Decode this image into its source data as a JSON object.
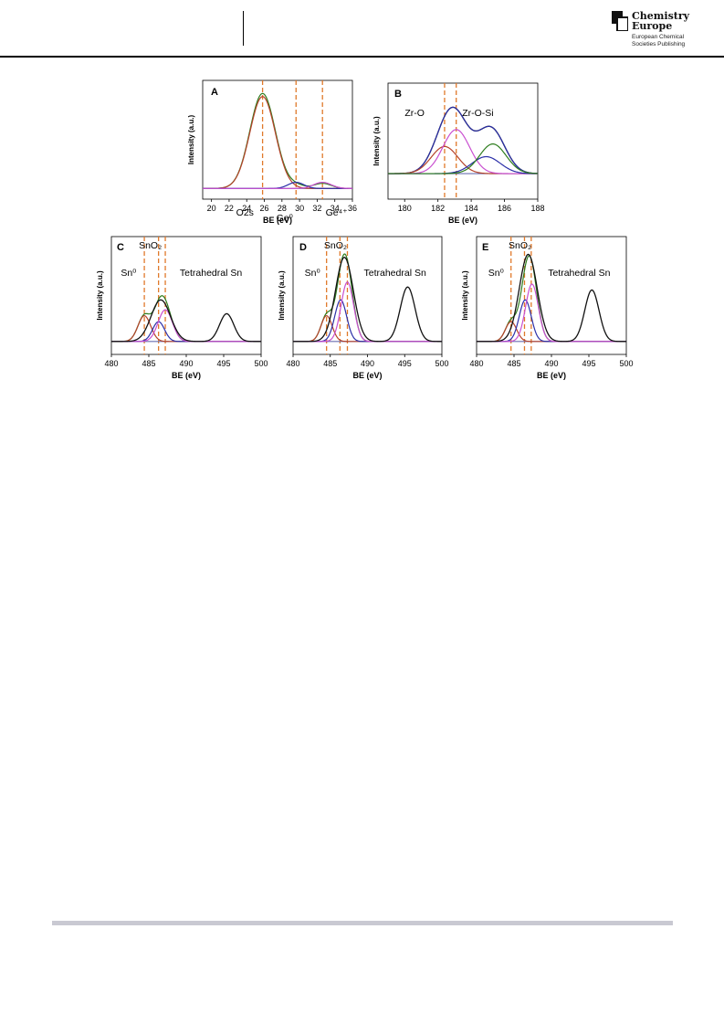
{
  "header": {
    "logo_line1": "Chemistry",
    "logo_line2": "Europe",
    "logo_sub1": "European Chemical",
    "logo_sub2": "Societies Publishing"
  },
  "colors": {
    "green": "#2e7d1e",
    "red": "#b5432a",
    "blue": "#2b2fa8",
    "magenta": "#c94fd0",
    "black": "#111111",
    "baseline": "#6a6fb0",
    "ref_line": "#e0792a"
  },
  "chart_data": [
    {
      "panel": "A",
      "type": "line",
      "xlabel": "BE (eV)",
      "ylabel": "Intensity (a.u.)",
      "xlim": [
        19,
        36
      ],
      "x_ticks": [
        20,
        22,
        24,
        26,
        28,
        30,
        32,
        34,
        36
      ],
      "grid": false,
      "ref_lines": [
        25.8,
        29.6,
        32.6
      ],
      "annotations": [
        {
          "text": "O2s",
          "x": 23.8
        },
        {
          "text": "Ge⁰",
          "x": 28.3
        },
        {
          "text": "Ge⁴⁺",
          "x": 34.2
        }
      ],
      "series": [
        {
          "color": "green",
          "peaks": [
            {
              "c": 25.8,
              "w": 1.45,
              "a": 0.93
            },
            {
              "c": 29.6,
              "w": 0.9,
              "a": 0.03
            },
            {
              "c": 32.6,
              "w": 1.0,
              "a": 0.05
            }
          ]
        },
        {
          "color": "red",
          "peaks": [
            {
              "c": 25.8,
              "w": 1.45,
              "a": 0.9
            }
          ]
        },
        {
          "color": "blue",
          "peaks": [
            {
              "c": 29.6,
              "w": 0.9,
              "a": 0.06
            }
          ]
        },
        {
          "color": "magenta",
          "peaks": [
            {
              "c": 32.6,
              "w": 1.0,
              "a": 0.06
            }
          ]
        }
      ]
    },
    {
      "panel": "B",
      "type": "line",
      "xlabel": "BE (eV)",
      "ylabel": "Intensity (a.u.)",
      "xlim": [
        179,
        188
      ],
      "x_ticks": [
        180,
        182,
        184,
        186,
        188
      ],
      "grid": false,
      "ref_lines": [
        182.4,
        183.1
      ],
      "annotations": [
        {
          "text": "Zr-O",
          "x": 180.6
        },
        {
          "text": "Zr-O-Si",
          "x": 184.4
        }
      ],
      "series": [
        {
          "color": "black",
          "peaks": [
            {
              "c": 182.4,
              "w": 0.8,
              "a": 0.32
            },
            {
              "c": 183.1,
              "w": 0.8,
              "a": 0.52
            },
            {
              "c": 184.9,
              "w": 0.85,
              "a": 0.2
            },
            {
              "c": 185.3,
              "w": 0.8,
              "a": 0.35
            }
          ]
        },
        {
          "color": "blue",
          "peaks": [
            {
              "c": 182.4,
              "w": 0.8,
              "a": 0.32
            },
            {
              "c": 183.1,
              "w": 0.8,
              "a": 0.52
            },
            {
              "c": 184.9,
              "w": 0.85,
              "a": 0.2
            },
            {
              "c": 185.3,
              "w": 0.8,
              "a": 0.35
            }
          ]
        },
        {
          "color": "red",
          "peaks": [
            {
              "c": 182.4,
              "w": 0.8,
              "a": 0.32
            }
          ]
        },
        {
          "color": "magenta",
          "peaks": [
            {
              "c": 183.1,
              "w": 0.8,
              "a": 0.52
            }
          ]
        },
        {
          "color": "blue",
          "peaks": [
            {
              "c": 184.9,
              "w": 0.85,
              "a": 0.2
            }
          ]
        },
        {
          "color": "green",
          "peaks": [
            {
              "c": 185.3,
              "w": 0.8,
              "a": 0.35
            }
          ]
        }
      ]
    },
    {
      "panel": "C",
      "type": "line",
      "xlabel": "BE (eV)",
      "ylabel": "Intensity (a.u.)",
      "xlim": [
        480,
        500
      ],
      "x_ticks": [
        480,
        485,
        490,
        495,
        500
      ],
      "grid": false,
      "ref_lines": [
        484.4,
        486.3,
        487.2
      ],
      "annotations": [
        {
          "text": "SnO₂",
          "x": 485.2
        },
        {
          "text": "Sn⁰",
          "x": 482.3
        },
        {
          "text": "Tetrahedral Sn",
          "x": 493.3
        }
      ],
      "series": [
        {
          "color": "green",
          "peaks": [
            {
              "c": 484.4,
              "w": 0.85,
              "a": 0.26
            },
            {
              "c": 486.3,
              "w": 0.8,
              "a": 0.2
            },
            {
              "c": 487.2,
              "w": 0.95,
              "a": 0.32
            }
          ]
        },
        {
          "color": "red",
          "peaks": [
            {
              "c": 484.4,
              "w": 0.85,
              "a": 0.26
            }
          ]
        },
        {
          "color": "blue",
          "peaks": [
            {
              "c": 486.3,
              "w": 0.8,
              "a": 0.2
            }
          ]
        },
        {
          "color": "magenta",
          "peaks": [
            {
              "c": 487.2,
              "w": 0.95,
              "a": 0.32
            }
          ]
        },
        {
          "color": "black",
          "peaks": [
            {
              "c": 495.4,
              "w": 0.95,
              "a": 0.28
            },
            {
              "c": 486.6,
              "w": 1.3,
              "a": 0.42
            }
          ]
        }
      ]
    },
    {
      "panel": "D",
      "type": "line",
      "xlabel": "BE (eV)",
      "ylabel": "Intensity (a.u.)",
      "xlim": [
        480,
        500
      ],
      "x_ticks": [
        480,
        485,
        490,
        495,
        500
      ],
      "grid": false,
      "ref_lines": [
        484.5,
        486.3,
        487.3
      ],
      "annotations": [
        {
          "text": "SnO₂",
          "x": 485.7
        },
        {
          "text": "Sn⁰",
          "x": 482.6
        },
        {
          "text": "Tetrahedral Sn",
          "x": 493.7
        }
      ],
      "series": [
        {
          "color": "green",
          "peaks": [
            {
              "c": 484.5,
              "w": 0.75,
              "a": 0.26
            },
            {
              "c": 486.4,
              "w": 0.8,
              "a": 0.42
            },
            {
              "c": 487.3,
              "w": 0.85,
              "a": 0.6
            }
          ]
        },
        {
          "color": "red",
          "peaks": [
            {
              "c": 484.5,
              "w": 0.75,
              "a": 0.26
            }
          ]
        },
        {
          "color": "blue",
          "peaks": [
            {
              "c": 486.4,
              "w": 0.8,
              "a": 0.42
            }
          ]
        },
        {
          "color": "magenta",
          "peaks": [
            {
              "c": 487.3,
              "w": 0.85,
              "a": 0.6
            }
          ]
        },
        {
          "color": "black",
          "peaks": [
            {
              "c": 495.4,
              "w": 1.0,
              "a": 0.55
            },
            {
              "c": 486.9,
              "w": 1.2,
              "a": 0.85
            }
          ]
        }
      ]
    },
    {
      "panel": "E",
      "type": "line",
      "xlabel": "BE (eV)",
      "ylabel": "Intensity (a.u.)",
      "xlim": [
        480,
        500
      ],
      "x_ticks": [
        480,
        485,
        490,
        495,
        500
      ],
      "grid": false,
      "ref_lines": [
        484.6,
        486.4,
        487.3
      ],
      "annotations": [
        {
          "text": "SnO₂",
          "x": 485.8
        },
        {
          "text": "Sn⁰",
          "x": 482.6
        },
        {
          "text": "Tetrahedral Sn",
          "x": 493.7
        }
      ],
      "series": [
        {
          "color": "green",
          "peaks": [
            {
              "c": 484.6,
              "w": 0.75,
              "a": 0.2
            },
            {
              "c": 486.5,
              "w": 0.8,
              "a": 0.42
            },
            {
              "c": 487.4,
              "w": 0.85,
              "a": 0.58
            }
          ]
        },
        {
          "color": "red",
          "peaks": [
            {
              "c": 484.6,
              "w": 0.75,
              "a": 0.2
            }
          ]
        },
        {
          "color": "blue",
          "peaks": [
            {
              "c": 486.5,
              "w": 0.8,
              "a": 0.42
            }
          ]
        },
        {
          "color": "magenta",
          "peaks": [
            {
              "c": 487.4,
              "w": 0.85,
              "a": 0.58
            }
          ]
        },
        {
          "color": "black",
          "peaks": [
            {
              "c": 495.4,
              "w": 0.95,
              "a": 0.52
            },
            {
              "c": 486.9,
              "w": 1.2,
              "a": 0.88
            }
          ]
        }
      ]
    }
  ]
}
